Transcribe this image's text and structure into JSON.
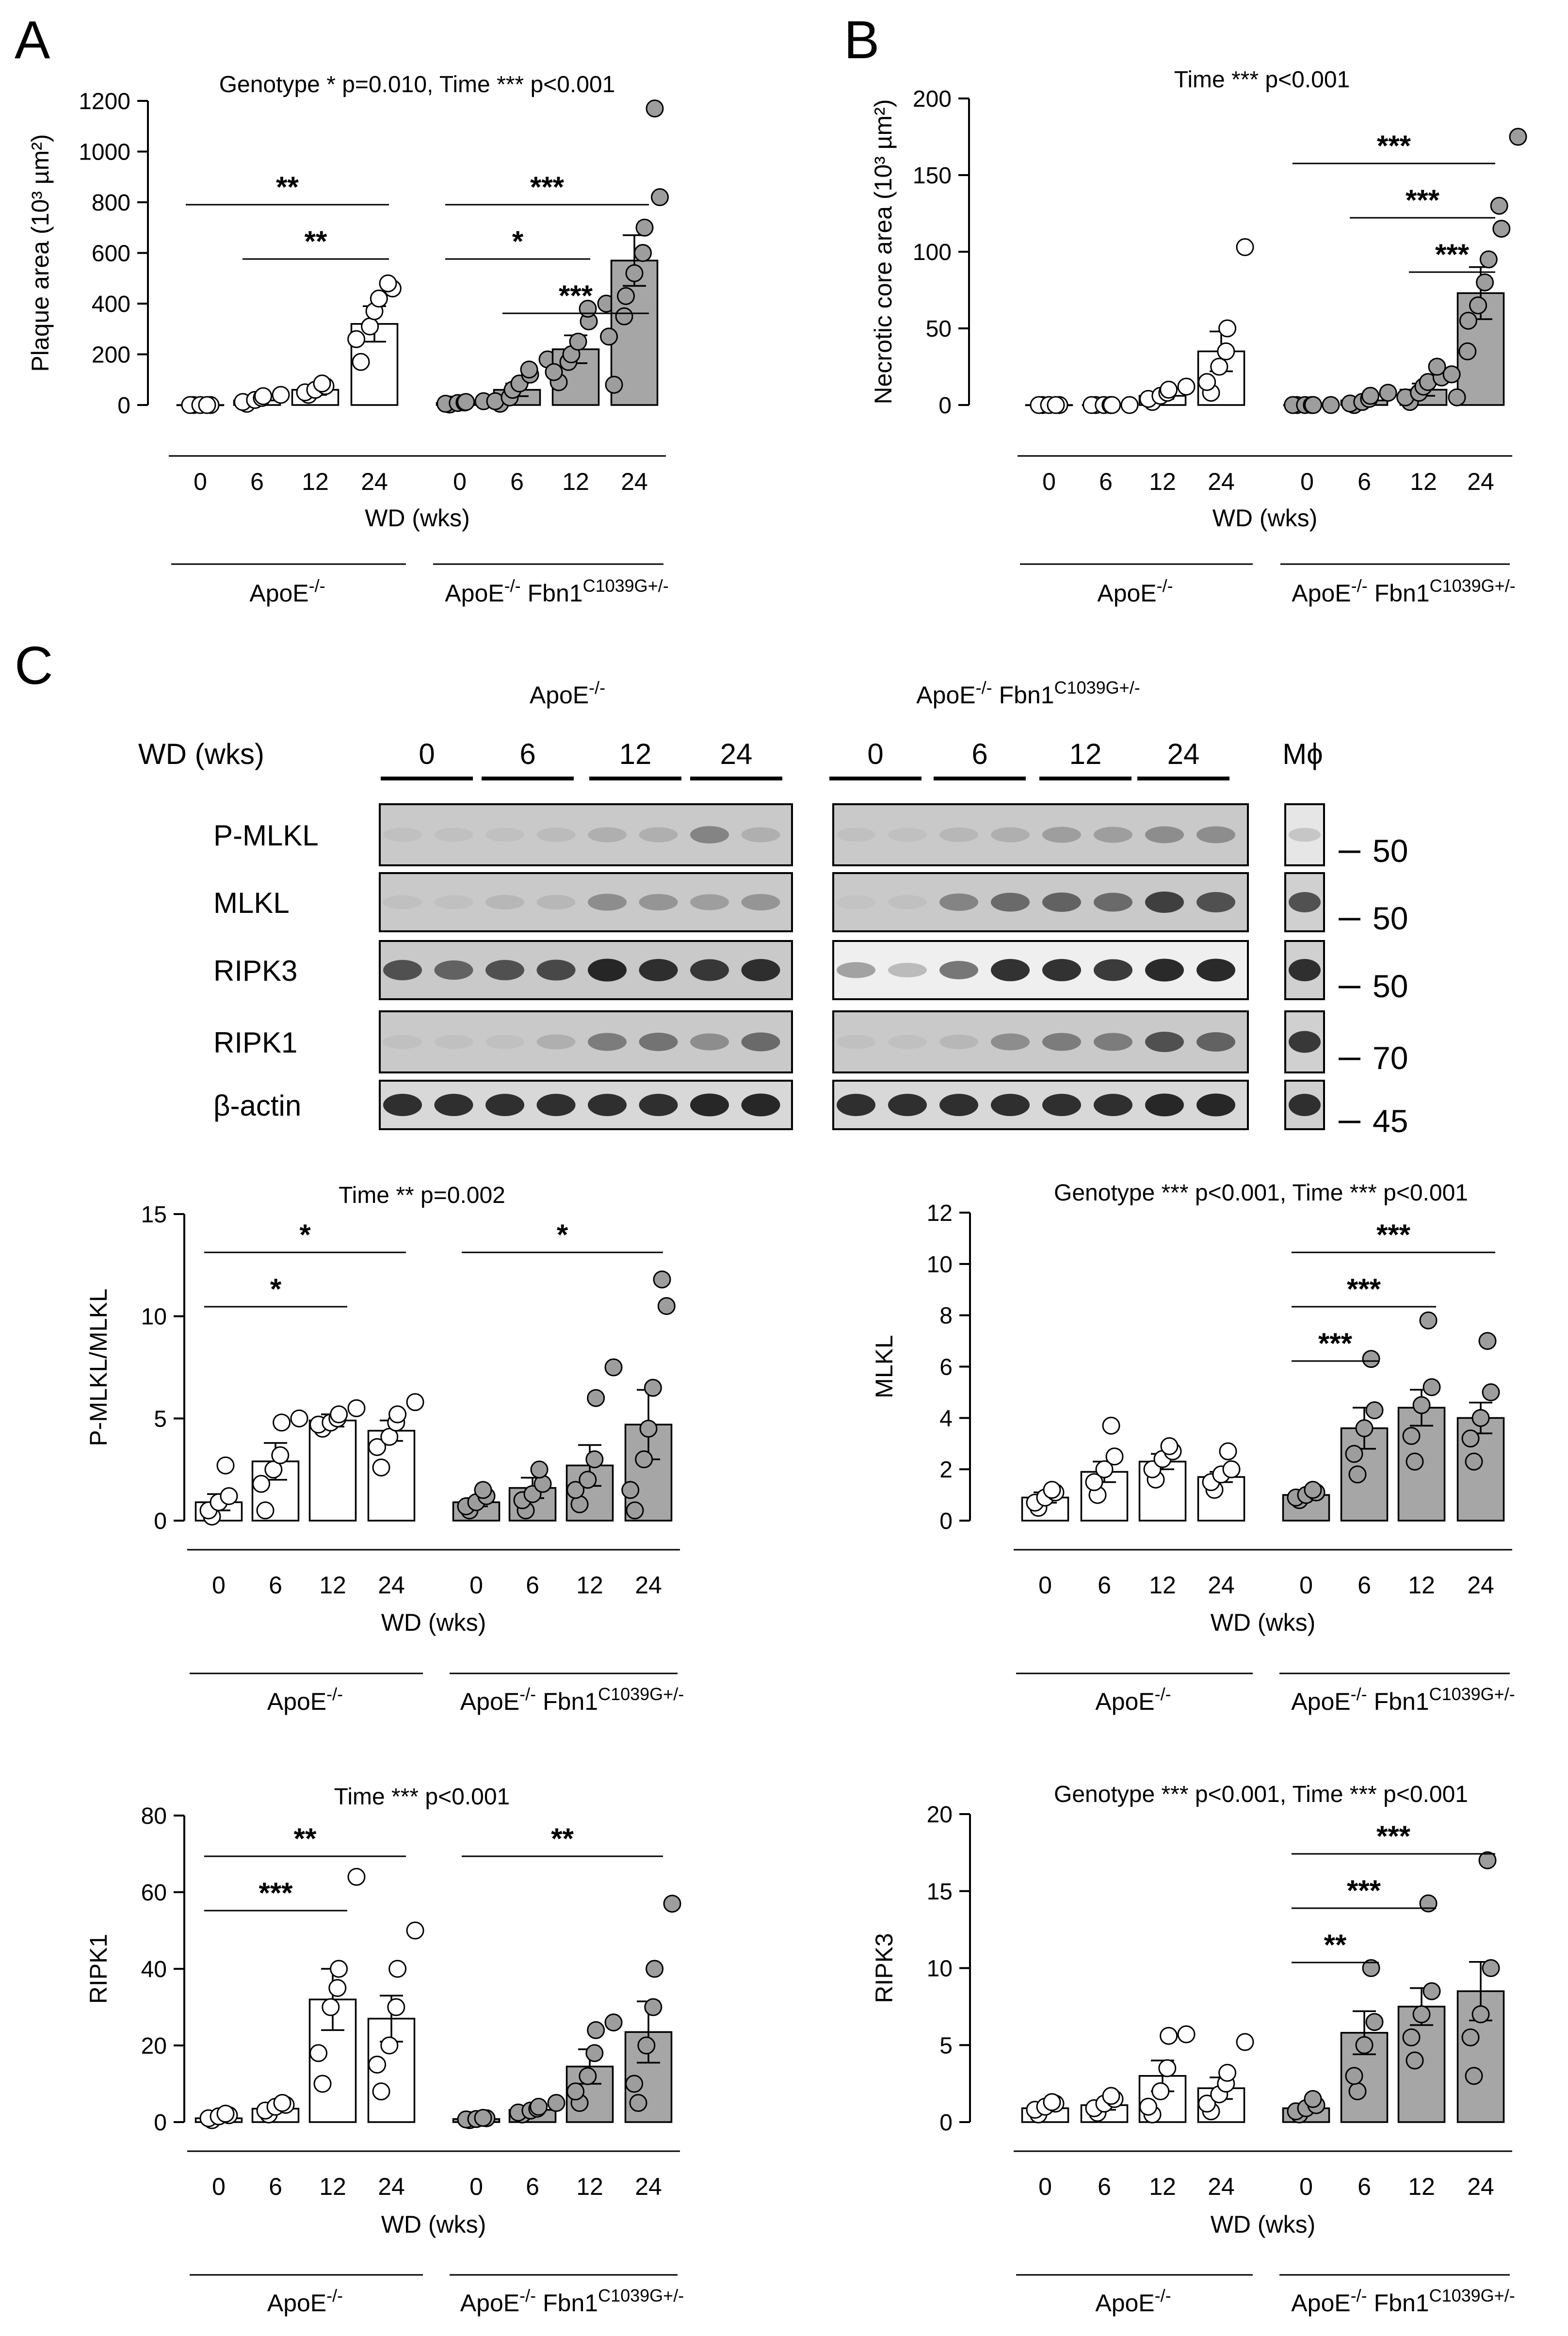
{
  "figure": {
    "panel_labels": {
      "A": "A",
      "B": "B",
      "C": "C"
    },
    "group_labels": {
      "g1_base": "ApoE",
      "g1_sup": "-/-",
      "g2_base": "ApoE",
      "g2_sup": "-/-",
      "g2_gene": "Fbn1",
      "g2_gene_sup": "C1039G+/-"
    },
    "xlabel": "WD (wks)",
    "colors": {
      "wt_fill": "#ffffff",
      "mut_fill": "#a6a6a6",
      "point_mut": "#9d9d9d",
      "stroke": "#000000"
    }
  },
  "chart_data": [
    {
      "id": "plaque",
      "type": "bar",
      "panel": "A",
      "title": "Genotype * p=0.010, Time *** p<0.001",
      "ylabel": "Plaque area (10³ µm²)",
      "ylim": [
        0,
        1200
      ],
      "yticks": [
        0,
        200,
        400,
        600,
        800,
        1000,
        1200
      ],
      "categories": [
        "0",
        "6",
        "12",
        "24"
      ],
      "series": [
        {
          "name": "ApoE-/-",
          "values": [
            0,
            18,
            60,
            320
          ],
          "sem": [
            0,
            8,
            20,
            70
          ],
          "points": [
            [
              0,
              0,
              0,
              0,
              0
            ],
            [
              5,
              12,
              20,
              28,
              35,
              40
            ],
            [
              40,
              50,
              60,
              75,
              85
            ],
            [
              170,
              260,
              310,
              370,
              420,
              460,
              480
            ]
          ]
        },
        {
          "name": "ApoE-/- Fbn1C1039G+/-",
          "values": [
            8,
            60,
            220,
            570
          ],
          "sem": [
            3,
            25,
            55,
            100
          ],
          "points": [
            [
              2,
              5,
              8,
              10,
              12,
              15
            ],
            [
              5,
              15,
              30,
              60,
              85,
              120,
              140,
              180
            ],
            [
              90,
              130,
              170,
              200,
              250,
              330,
              380,
              400
            ],
            [
              80,
              270,
              350,
              430,
              520,
              600,
              700,
              820,
              1170
            ]
          ]
        }
      ],
      "sig": [
        {
          "label": "**",
          "from": [
            0,
            0
          ],
          "to": [
            0,
            3
          ]
        },
        {
          "label": "**",
          "from": [
            0,
            1
          ],
          "to": [
            0,
            3
          ]
        },
        {
          "label": "*",
          "from": [
            1,
            0
          ],
          "to": [
            1,
            2
          ]
        },
        {
          "label": "***",
          "from": [
            1,
            0
          ],
          "to": [
            1,
            3
          ]
        },
        {
          "label": "***",
          "from": [
            1,
            1
          ],
          "to": [
            1,
            3
          ]
        }
      ]
    },
    {
      "id": "necrotic",
      "type": "bar",
      "panel": "B",
      "title": "Time *** p<0.001",
      "ylabel": "Necrotic core area (10³ µm²)",
      "ylim": [
        0,
        200
      ],
      "yticks": [
        0,
        50,
        100,
        150,
        200
      ],
      "categories": [
        "0",
        "6",
        "12",
        "24"
      ],
      "series": [
        {
          "name": "ApoE-/-",
          "values": [
            0,
            0,
            6,
            35
          ],
          "sem": [
            0,
            0,
            2,
            13
          ],
          "points": [
            [
              0,
              0,
              0,
              0,
              0
            ],
            [
              0,
              0,
              0,
              0,
              0,
              0
            ],
            [
              2,
              4,
              6,
              8,
              10,
              12
            ],
            [
              8,
              15,
              25,
              35,
              50,
              103
            ]
          ]
        },
        {
          "name": "ApoE-/- Fbn1C1039G+/-",
          "values": [
            0,
            3,
            10,
            73
          ],
          "sem": [
            0,
            1.5,
            4,
            17
          ],
          "points": [
            [
              0,
              0,
              0,
              0,
              0,
              0
            ],
            [
              0,
              1,
              2,
              4,
              6,
              8
            ],
            [
              2,
              5,
              8,
              12,
              15,
              18,
              25
            ],
            [
              5,
              20,
              35,
              55,
              65,
              80,
              95,
              115,
              130,
              175
            ]
          ]
        }
      ],
      "sig": [
        {
          "label": "***",
          "from": [
            1,
            0
          ],
          "to": [
            1,
            3
          ]
        },
        {
          "label": "***",
          "from": [
            1,
            1
          ],
          "to": [
            1,
            3
          ]
        },
        {
          "label": "***",
          "from": [
            1,
            2
          ],
          "to": [
            1,
            3
          ]
        }
      ]
    },
    {
      "id": "pmlkl",
      "type": "bar",
      "panel": "C",
      "title": "Time ** p=0.002",
      "ylabel": "P-MLKL/MLKL",
      "ylim": [
        0,
        15
      ],
      "yticks": [
        0,
        5,
        10,
        15
      ],
      "categories": [
        "0",
        "6",
        "12",
        "24"
      ],
      "series": [
        {
          "name": "ApoE-/-",
          "values": [
            0.9,
            2.9,
            4.9,
            4.4
          ],
          "sem": [
            0.4,
            0.9,
            0.3,
            0.5
          ],
          "points": [
            [
              0.2,
              0.5,
              0.9,
              1.2,
              2.7
            ],
            [
              0.5,
              1.8,
              2.5,
              3.2,
              4.8,
              5.0
            ],
            [
              4.5,
              4.7,
              4.8,
              5.0,
              5.2,
              5.5
            ],
            [
              2.6,
              3.6,
              4.1,
              4.8,
              5.2,
              5.8
            ]
          ]
        },
        {
          "name": "ApoE-/- Fbn1C1039G+/-",
          "values": [
            0.9,
            1.6,
            2.7,
            4.7
          ],
          "sem": [
            0.2,
            0.5,
            1.0,
            1.7
          ],
          "points": [
            [
              0.5,
              0.7,
              0.9,
              1.2,
              1.5
            ],
            [
              0.5,
              1.0,
              1.3,
              1.8,
              2.5
            ],
            [
              0.8,
              1.5,
              2.0,
              3.0,
              6.0,
              7.5
            ],
            [
              0.5,
              1.5,
              3.0,
              4.5,
              6.5,
              10.5,
              11.8
            ]
          ]
        }
      ],
      "sig": [
        {
          "label": "*",
          "from": [
            0,
            0
          ],
          "to": [
            0,
            2
          ]
        },
        {
          "label": "*",
          "from": [
            0,
            0
          ],
          "to": [
            0,
            3
          ]
        },
        {
          "label": "*",
          "from": [
            1,
            0
          ],
          "to": [
            1,
            3
          ]
        }
      ]
    },
    {
      "id": "mlkl",
      "type": "bar",
      "panel": "C",
      "title": "Genotype *** p<0.001, Time *** p<0.001",
      "ylabel": "MLKL",
      "ylim": [
        0,
        12
      ],
      "yticks": [
        0,
        2,
        4,
        6,
        8,
        10,
        12
      ],
      "categories": [
        "0",
        "6",
        "12",
        "24"
      ],
      "series": [
        {
          "name": "ApoE-/-",
          "values": [
            0.9,
            1.9,
            2.3,
            1.7
          ],
          "sem": [
            0.2,
            0.4,
            0.3,
            0.2
          ],
          "points": [
            [
              0.5,
              0.7,
              0.9,
              1.1,
              1.2
            ],
            [
              1.0,
              1.5,
              2.0,
              2.5,
              3.7
            ],
            [
              1.6,
              2.0,
              2.4,
              2.7,
              2.9
            ],
            [
              1.2,
              1.5,
              1.8,
              2.0,
              2.7
            ]
          ]
        },
        {
          "name": "ApoE-/- Fbn1C1039G+/-",
          "values": [
            1.0,
            3.6,
            4.4,
            4.0
          ],
          "sem": [
            0.1,
            0.8,
            0.7,
            0.6
          ],
          "points": [
            [
              0.8,
              0.9,
              1.0,
              1.1,
              1.2
            ],
            [
              1.8,
              2.6,
              3.6,
              4.3,
              6.3
            ],
            [
              2.3,
              3.3,
              4.5,
              5.2,
              7.8
            ],
            [
              2.3,
              3.2,
              4.0,
              5.0,
              7.0
            ]
          ]
        }
      ],
      "sig": [
        {
          "label": "***",
          "from": [
            1,
            0
          ],
          "to": [
            1,
            1
          ]
        },
        {
          "label": "***",
          "from": [
            1,
            0
          ],
          "to": [
            1,
            2
          ]
        },
        {
          "label": "***",
          "from": [
            1,
            0
          ],
          "to": [
            1,
            3
          ]
        }
      ]
    },
    {
      "id": "ripk1",
      "type": "bar",
      "panel": "C",
      "title": "Time *** p<0.001",
      "ylabel": "RIPK1",
      "ylim": [
        0,
        80
      ],
      "yticks": [
        0,
        20,
        40,
        60,
        80
      ],
      "categories": [
        "0",
        "6",
        "12",
        "24"
      ],
      "series": [
        {
          "name": "ApoE-/-",
          "values": [
            1.0,
            3.5,
            32,
            27
          ],
          "sem": [
            0.5,
            0.8,
            8,
            6
          ],
          "points": [
            [
              0.5,
              1.0,
              1.5,
              1.8,
              2.2
            ],
            [
              2.0,
              3.0,
              4.0,
              4.5,
              5.0
            ],
            [
              10,
              18,
              30,
              35,
              40,
              64
            ],
            [
              8,
              15,
              20,
              30,
              40,
              50
            ]
          ]
        },
        {
          "name": "ApoE-/- Fbn1C1039G+/-",
          "values": [
            0.8,
            3.2,
            14.5,
            23.5
          ],
          "sem": [
            0.2,
            0.7,
            4.5,
            8
          ],
          "points": [
            [
              0.5,
              0.7,
              0.8,
              1.0,
              1.1
            ],
            [
              2.0,
              2.5,
              3.0,
              3.5,
              4.0,
              5.0
            ],
            [
              5,
              8,
              12,
              18,
              24,
              26
            ],
            [
              5,
              10,
              20,
              30,
              40,
              57
            ]
          ]
        }
      ],
      "sig": [
        {
          "label": "***",
          "from": [
            0,
            0
          ],
          "to": [
            0,
            2
          ]
        },
        {
          "label": "**",
          "from": [
            0,
            0
          ],
          "to": [
            0,
            3
          ]
        },
        {
          "label": "**",
          "from": [
            1,
            0
          ],
          "to": [
            1,
            3
          ]
        }
      ]
    },
    {
      "id": "ripk3",
      "type": "bar",
      "panel": "C",
      "title": "Genotype *** p<0.001, Time *** p<0.001",
      "ylabel": "RIPK3",
      "ylim": [
        0,
        20
      ],
      "yticks": [
        0,
        5,
        10,
        15,
        20
      ],
      "categories": [
        "0",
        "6",
        "12",
        "24"
      ],
      "series": [
        {
          "name": "ApoE-/-",
          "values": [
            0.9,
            1.1,
            3.0,
            2.2
          ],
          "sem": [
            0.2,
            0.3,
            1.0,
            0.7
          ],
          "points": [
            [
              0.5,
              0.8,
              1.0,
              1.2,
              1.3
            ],
            [
              0.6,
              0.9,
              1.2,
              1.5,
              1.7
            ],
            [
              0.5,
              1.0,
              2.0,
              3.5,
              5.6,
              5.7
            ],
            [
              0.7,
              1.2,
              1.8,
              2.5,
              3.2,
              5.2
            ]
          ]
        },
        {
          "name": "ApoE-/- Fbn1C1039G+/-",
          "values": [
            0.9,
            5.8,
            7.5,
            8.5
          ],
          "sem": [
            0.2,
            1.4,
            1.2,
            1.9
          ],
          "points": [
            [
              0.5,
              0.7,
              0.9,
              1.1,
              1.5
            ],
            [
              2.0,
              3.0,
              5.0,
              6.5,
              10.0
            ],
            [
              4.0,
              5.5,
              7.0,
              8.5,
              14.2
            ],
            [
              3.0,
              5.5,
              7.0,
              10.0,
              17.0
            ]
          ]
        }
      ],
      "sig": [
        {
          "label": "**",
          "from": [
            1,
            0
          ],
          "to": [
            1,
            1
          ]
        },
        {
          "label": "***",
          "from": [
            1,
            0
          ],
          "to": [
            1,
            2
          ]
        },
        {
          "label": "***",
          "from": [
            1,
            0
          ],
          "to": [
            1,
            3
          ]
        }
      ]
    }
  ],
  "blot": {
    "header_wd": "WD (wks)",
    "timepoints": [
      "0",
      "6",
      "12",
      "24"
    ],
    "macrophage_label": "Mϕ",
    "rows": [
      {
        "label": "P-MLKL",
        "mw": "50"
      },
      {
        "label": "MLKL",
        "mw": "50"
      },
      {
        "label": "RIPK3",
        "mw": "50"
      },
      {
        "label": "RIPK1",
        "mw": "70"
      },
      {
        "label": "β-actin",
        "mw": "45"
      }
    ]
  }
}
